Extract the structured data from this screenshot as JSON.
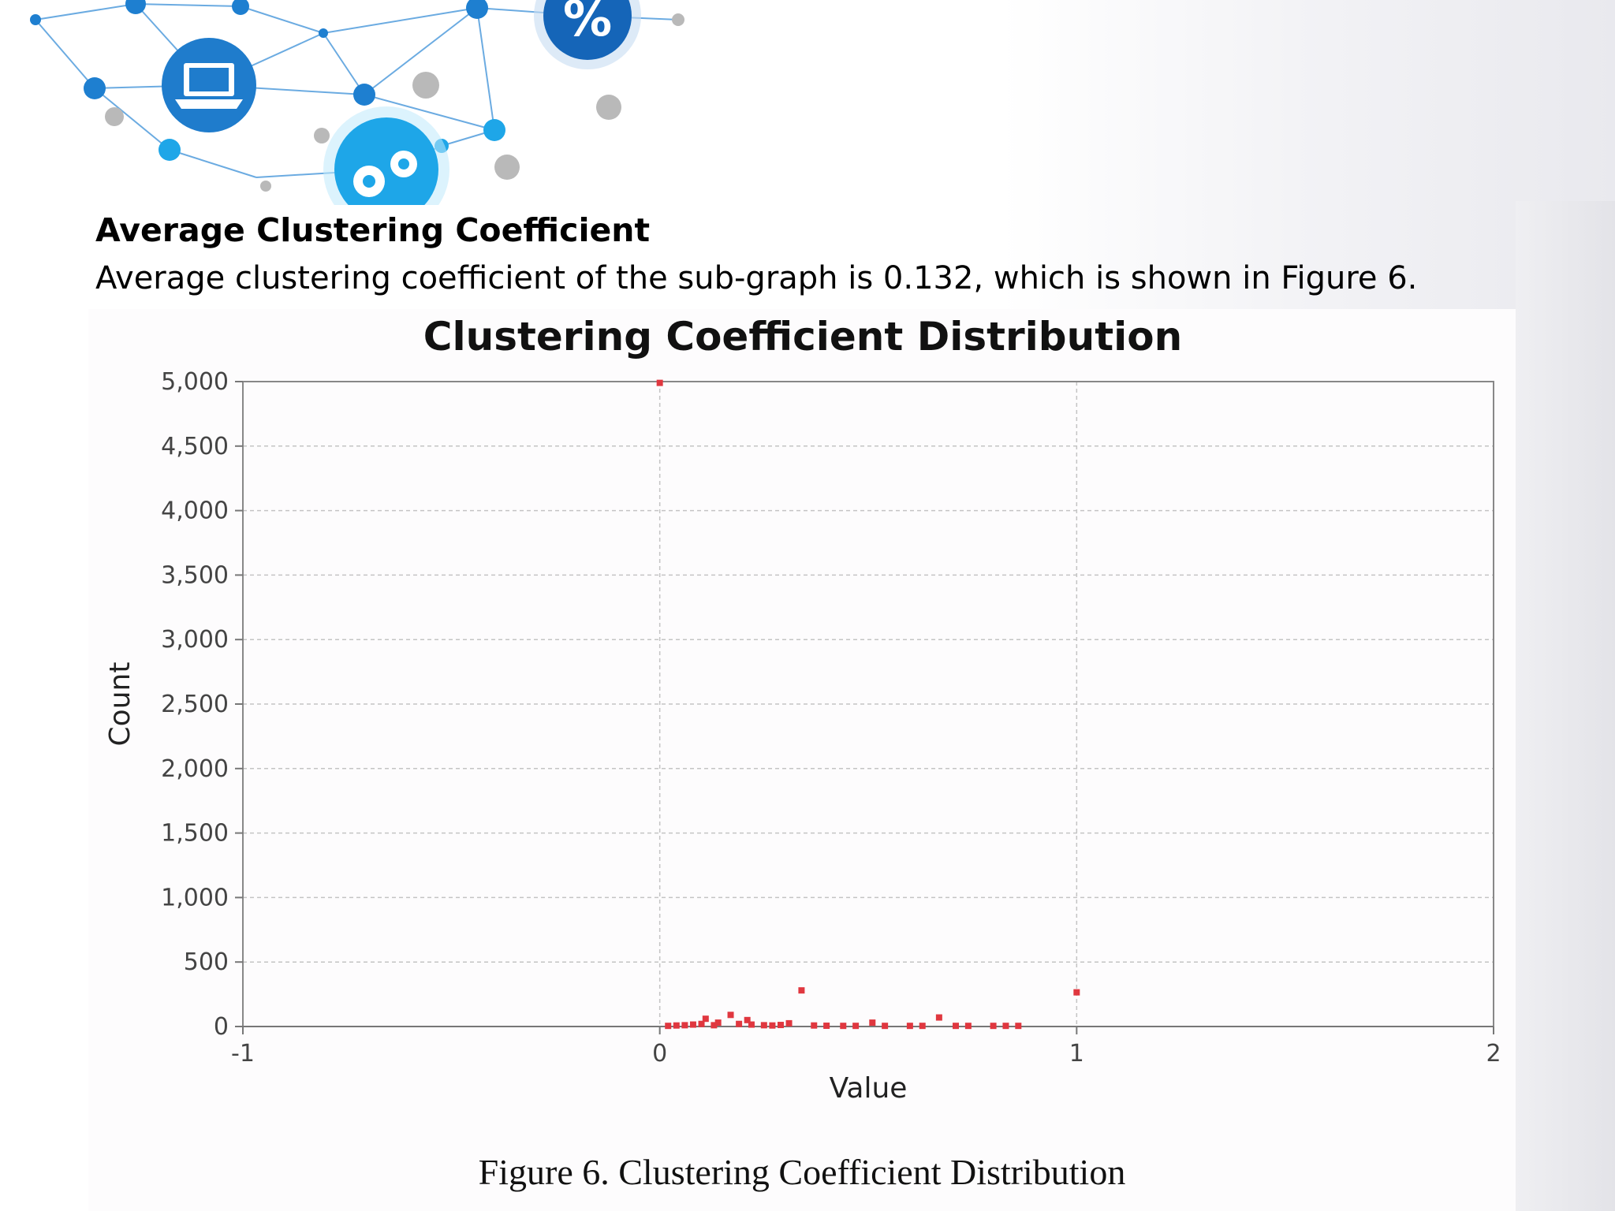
{
  "slide": {
    "heading": "Average Clustering Coefficient",
    "body": "Average clustering coefficient of the sub-graph is 0.132, which is shown in Figure 6.",
    "caption": "Figure 6. Clustering Coefficient Distribution"
  },
  "decoration": {
    "icons": [
      "laptop-icon",
      "gears-icon",
      "percent-icon"
    ],
    "colors": {
      "node_blue": "#1e7fd0",
      "node_dark": "#1565b8",
      "node_cyan": "#1ea6e8",
      "node_gray": "#b9b9b9"
    }
  },
  "chart_data": {
    "type": "scatter",
    "title": "Clustering Coefficient Distribution",
    "xlabel": "Value",
    "ylabel": "Count",
    "xlim": [
      -1,
      2
    ],
    "ylim": [
      0,
      5000
    ],
    "x_ticks": [
      "-1",
      "0",
      "1",
      "2"
    ],
    "y_ticks": [
      "0",
      "500",
      "1,000",
      "1,500",
      "2,000",
      "2,500",
      "3,000",
      "3,500",
      "4,000",
      "4,500",
      "5,000"
    ],
    "grid": true,
    "series": [
      {
        "color": "#e0373f",
        "points": [
          {
            "x": 0.0,
            "y": 4990
          },
          {
            "x": 0.02,
            "y": 5
          },
          {
            "x": 0.04,
            "y": 8
          },
          {
            "x": 0.06,
            "y": 10
          },
          {
            "x": 0.08,
            "y": 15
          },
          {
            "x": 0.1,
            "y": 20
          },
          {
            "x": 0.11,
            "y": 60
          },
          {
            "x": 0.13,
            "y": 10
          },
          {
            "x": 0.14,
            "y": 30
          },
          {
            "x": 0.17,
            "y": 90
          },
          {
            "x": 0.19,
            "y": 20
          },
          {
            "x": 0.21,
            "y": 50
          },
          {
            "x": 0.22,
            "y": 15
          },
          {
            "x": 0.25,
            "y": 10
          },
          {
            "x": 0.27,
            "y": 8
          },
          {
            "x": 0.29,
            "y": 12
          },
          {
            "x": 0.31,
            "y": 25
          },
          {
            "x": 0.34,
            "y": 280
          },
          {
            "x": 0.37,
            "y": 8
          },
          {
            "x": 0.4,
            "y": 6
          },
          {
            "x": 0.44,
            "y": 5
          },
          {
            "x": 0.47,
            "y": 5
          },
          {
            "x": 0.51,
            "y": 30
          },
          {
            "x": 0.54,
            "y": 5
          },
          {
            "x": 0.6,
            "y": 5
          },
          {
            "x": 0.63,
            "y": 5
          },
          {
            "x": 0.67,
            "y": 70
          },
          {
            "x": 0.71,
            "y": 5
          },
          {
            "x": 0.74,
            "y": 5
          },
          {
            "x": 0.8,
            "y": 5
          },
          {
            "x": 0.83,
            "y": 5
          },
          {
            "x": 0.86,
            "y": 5
          },
          {
            "x": 1.0,
            "y": 265
          }
        ]
      }
    ]
  }
}
